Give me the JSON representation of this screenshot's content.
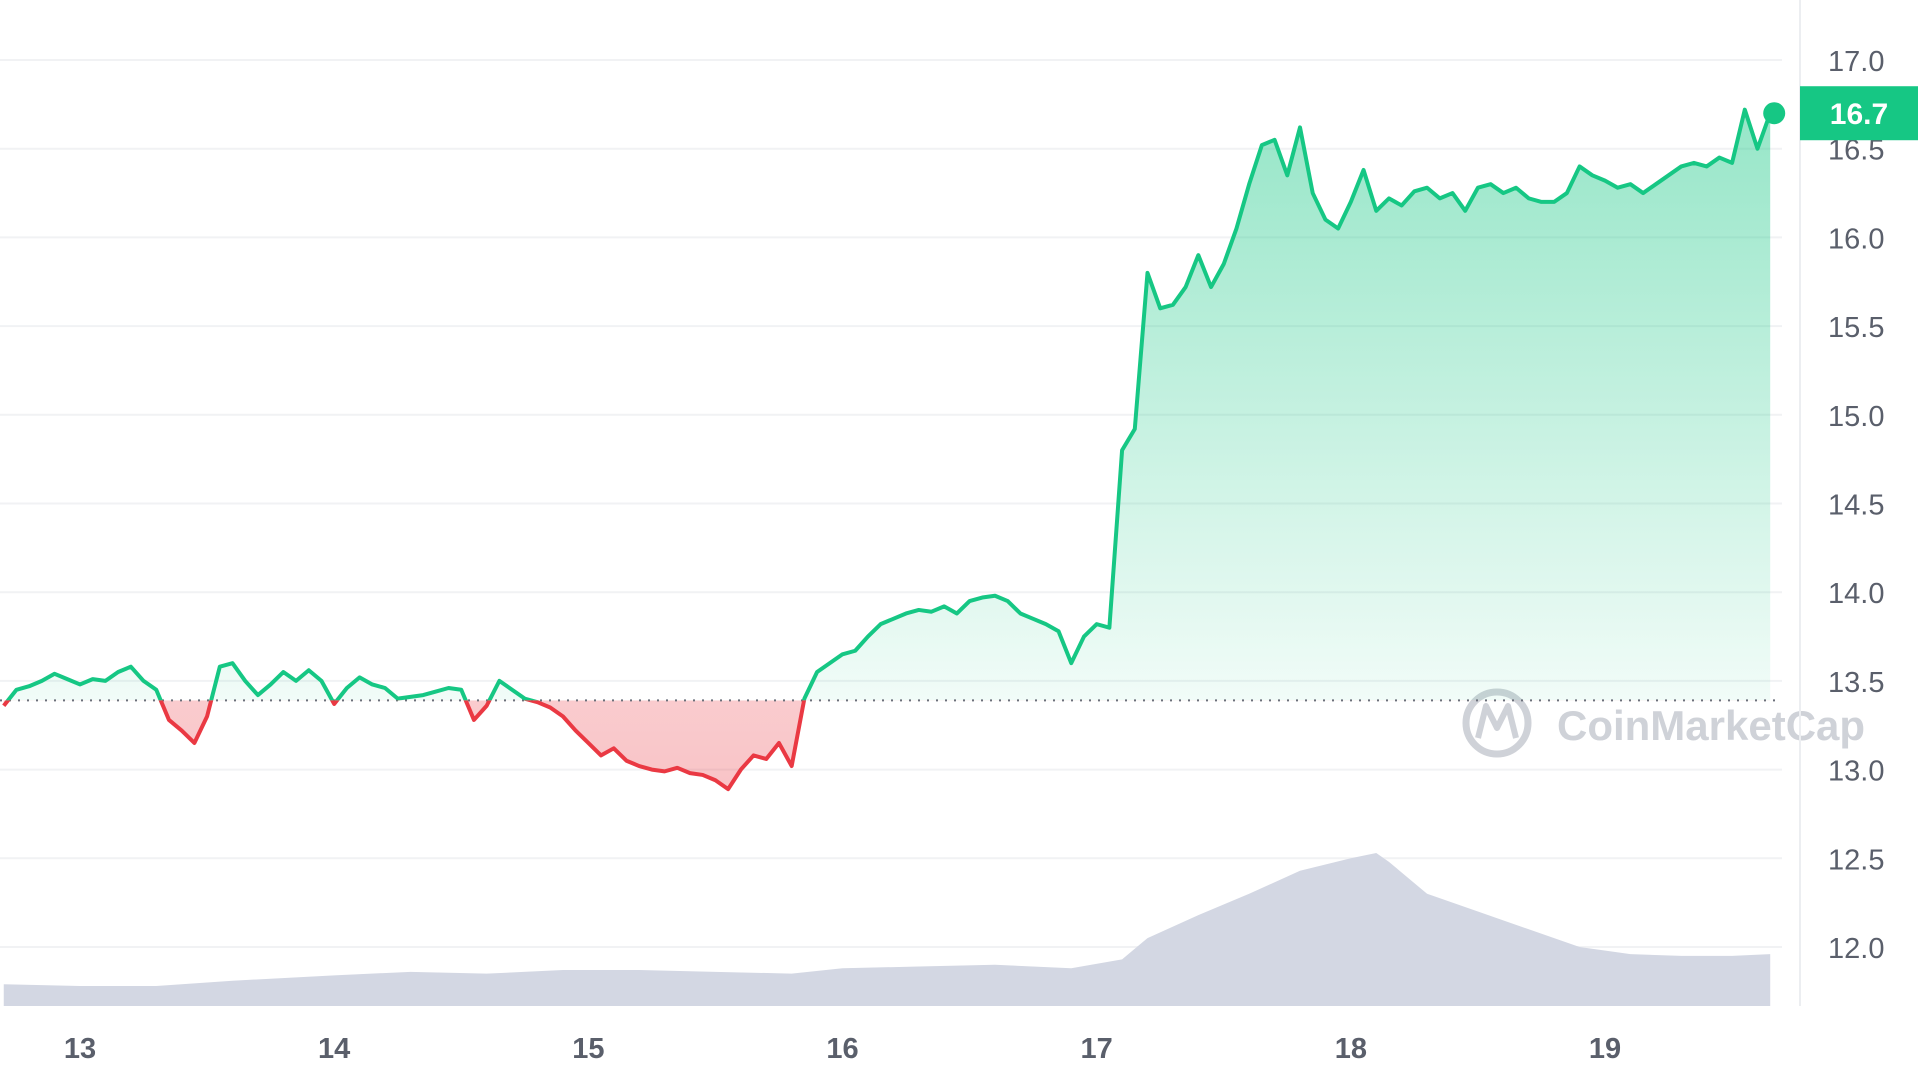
{
  "chart_data": {
    "type": "line",
    "title": "",
    "xlabel": "",
    "ylabel": "",
    "x_ticks": [
      "13",
      "14",
      "15",
      "16",
      "17",
      "18",
      "19"
    ],
    "y_ticks": [
      "17.0",
      "16.5",
      "16.0",
      "15.5",
      "15.0",
      "14.5",
      "14.0",
      "13.5",
      "13.0",
      "12.5",
      "12.0"
    ],
    "ylim": [
      11.7,
      17.3
    ],
    "xlim": [
      12.7,
      19.75
    ],
    "grid": true,
    "baseline": 13.39,
    "current_price": "16.7",
    "watermark": "CoinMarketCap",
    "colors": {
      "up": "#16c784",
      "down": "#ea3943",
      "volume": "#d3d7e3",
      "grid": "#f1f2f4",
      "axis_text": "#5a5f6b"
    },
    "series": [
      {
        "name": "",
        "points": [
          [
            12.7,
            13.36
          ],
          [
            12.75,
            13.45
          ],
          [
            12.8,
            13.47
          ],
          [
            12.85,
            13.5
          ],
          [
            12.9,
            13.54
          ],
          [
            12.95,
            13.51
          ],
          [
            13.0,
            13.48
          ],
          [
            13.05,
            13.51
          ],
          [
            13.1,
            13.5
          ],
          [
            13.15,
            13.55
          ],
          [
            13.2,
            13.58
          ],
          [
            13.25,
            13.5
          ],
          [
            13.3,
            13.45
          ],
          [
            13.35,
            13.28
          ],
          [
            13.4,
            13.22
          ],
          [
            13.45,
            13.15
          ],
          [
            13.5,
            13.3
          ],
          [
            13.55,
            13.58
          ],
          [
            13.6,
            13.6
          ],
          [
            13.65,
            13.5
          ],
          [
            13.7,
            13.42
          ],
          [
            13.75,
            13.48
          ],
          [
            13.8,
            13.55
          ],
          [
            13.85,
            13.5
          ],
          [
            13.9,
            13.56
          ],
          [
            13.95,
            13.5
          ],
          [
            14.0,
            13.37
          ],
          [
            14.05,
            13.46
          ],
          [
            14.1,
            13.52
          ],
          [
            14.15,
            13.48
          ],
          [
            14.2,
            13.46
          ],
          [
            14.25,
            13.4
          ],
          [
            14.3,
            13.41
          ],
          [
            14.35,
            13.42
          ],
          [
            14.4,
            13.44
          ],
          [
            14.45,
            13.46
          ],
          [
            14.5,
            13.45
          ],
          [
            14.55,
            13.28
          ],
          [
            14.6,
            13.36
          ],
          [
            14.65,
            13.5
          ],
          [
            14.7,
            13.45
          ],
          [
            14.75,
            13.4
          ],
          [
            14.8,
            13.38
          ],
          [
            14.85,
            13.35
          ],
          [
            14.9,
            13.3
          ],
          [
            14.95,
            13.22
          ],
          [
            15.0,
            13.15
          ],
          [
            15.05,
            13.08
          ],
          [
            15.1,
            13.12
          ],
          [
            15.15,
            13.05
          ],
          [
            15.2,
            13.02
          ],
          [
            15.25,
            13.0
          ],
          [
            15.3,
            12.99
          ],
          [
            15.35,
            13.01
          ],
          [
            15.4,
            12.98
          ],
          [
            15.45,
            12.97
          ],
          [
            15.5,
            12.94
          ],
          [
            15.55,
            12.89
          ],
          [
            15.6,
            13.0
          ],
          [
            15.65,
            13.08
          ],
          [
            15.7,
            13.06
          ],
          [
            15.75,
            13.15
          ],
          [
            15.8,
            13.02
          ],
          [
            15.85,
            13.4
          ],
          [
            15.9,
            13.55
          ],
          [
            15.95,
            13.6
          ],
          [
            16.0,
            13.65
          ],
          [
            16.05,
            13.67
          ],
          [
            16.1,
            13.75
          ],
          [
            16.15,
            13.82
          ],
          [
            16.2,
            13.85
          ],
          [
            16.25,
            13.88
          ],
          [
            16.3,
            13.9
          ],
          [
            16.35,
            13.89
          ],
          [
            16.4,
            13.92
          ],
          [
            16.45,
            13.88
          ],
          [
            16.5,
            13.95
          ],
          [
            16.55,
            13.97
          ],
          [
            16.6,
            13.98
          ],
          [
            16.65,
            13.95
          ],
          [
            16.7,
            13.88
          ],
          [
            16.75,
            13.85
          ],
          [
            16.8,
            13.82
          ],
          [
            16.85,
            13.78
          ],
          [
            16.9,
            13.6
          ],
          [
            16.95,
            13.75
          ],
          [
            17.0,
            13.82
          ],
          [
            17.05,
            13.8
          ],
          [
            17.1,
            14.8
          ],
          [
            17.15,
            14.92
          ],
          [
            17.2,
            15.8
          ],
          [
            17.25,
            15.6
          ],
          [
            17.3,
            15.62
          ],
          [
            17.35,
            15.72
          ],
          [
            17.4,
            15.9
          ],
          [
            17.45,
            15.72
          ],
          [
            17.5,
            15.85
          ],
          [
            17.55,
            16.05
          ],
          [
            17.6,
            16.3
          ],
          [
            17.65,
            16.52
          ],
          [
            17.7,
            16.55
          ],
          [
            17.75,
            16.35
          ],
          [
            17.8,
            16.62
          ],
          [
            17.85,
            16.25
          ],
          [
            17.9,
            16.1
          ],
          [
            17.95,
            16.05
          ],
          [
            18.0,
            16.2
          ],
          [
            18.05,
            16.38
          ],
          [
            18.1,
            16.15
          ],
          [
            18.15,
            16.22
          ],
          [
            18.2,
            16.18
          ],
          [
            18.25,
            16.26
          ],
          [
            18.3,
            16.28
          ],
          [
            18.35,
            16.22
          ],
          [
            18.4,
            16.25
          ],
          [
            18.45,
            16.15
          ],
          [
            18.5,
            16.28
          ],
          [
            18.55,
            16.3
          ],
          [
            18.6,
            16.25
          ],
          [
            18.65,
            16.28
          ],
          [
            18.7,
            16.22
          ],
          [
            18.75,
            16.2
          ],
          [
            18.8,
            16.2
          ],
          [
            18.85,
            16.25
          ],
          [
            18.9,
            16.4
          ],
          [
            18.95,
            16.35
          ],
          [
            19.0,
            16.32
          ],
          [
            19.05,
            16.28
          ],
          [
            19.1,
            16.3
          ],
          [
            19.15,
            16.25
          ],
          [
            19.2,
            16.3
          ],
          [
            19.25,
            16.35
          ],
          [
            19.3,
            16.4
          ],
          [
            19.35,
            16.42
          ],
          [
            19.4,
            16.4
          ],
          [
            19.45,
            16.45
          ],
          [
            19.5,
            16.42
          ],
          [
            19.55,
            16.72
          ],
          [
            19.6,
            16.5
          ],
          [
            19.65,
            16.7
          ]
        ]
      }
    ],
    "volume_series": {
      "name": "",
      "points": [
        [
          12.7,
          11.79
        ],
        [
          13.0,
          11.78
        ],
        [
          13.3,
          11.78
        ],
        [
          13.6,
          11.81
        ],
        [
          14.0,
          11.84
        ],
        [
          14.3,
          11.86
        ],
        [
          14.6,
          11.85
        ],
        [
          14.9,
          11.87
        ],
        [
          15.2,
          11.87
        ],
        [
          15.5,
          11.86
        ],
        [
          15.8,
          11.85
        ],
        [
          16.0,
          11.88
        ],
        [
          16.3,
          11.89
        ],
        [
          16.6,
          11.9
        ],
        [
          16.9,
          11.88
        ],
        [
          17.1,
          11.93
        ],
        [
          17.2,
          12.05
        ],
        [
          17.4,
          12.18
        ],
        [
          17.6,
          12.3
        ],
        [
          17.8,
          12.43
        ],
        [
          18.0,
          12.5
        ],
        [
          18.1,
          12.53
        ],
        [
          18.15,
          12.48
        ],
        [
          18.3,
          12.3
        ],
        [
          18.5,
          12.2
        ],
        [
          18.7,
          12.1
        ],
        [
          18.9,
          12.0
        ],
        [
          19.1,
          11.96
        ],
        [
          19.3,
          11.95
        ],
        [
          19.5,
          11.95
        ],
        [
          19.65,
          11.96
        ]
      ]
    }
  }
}
